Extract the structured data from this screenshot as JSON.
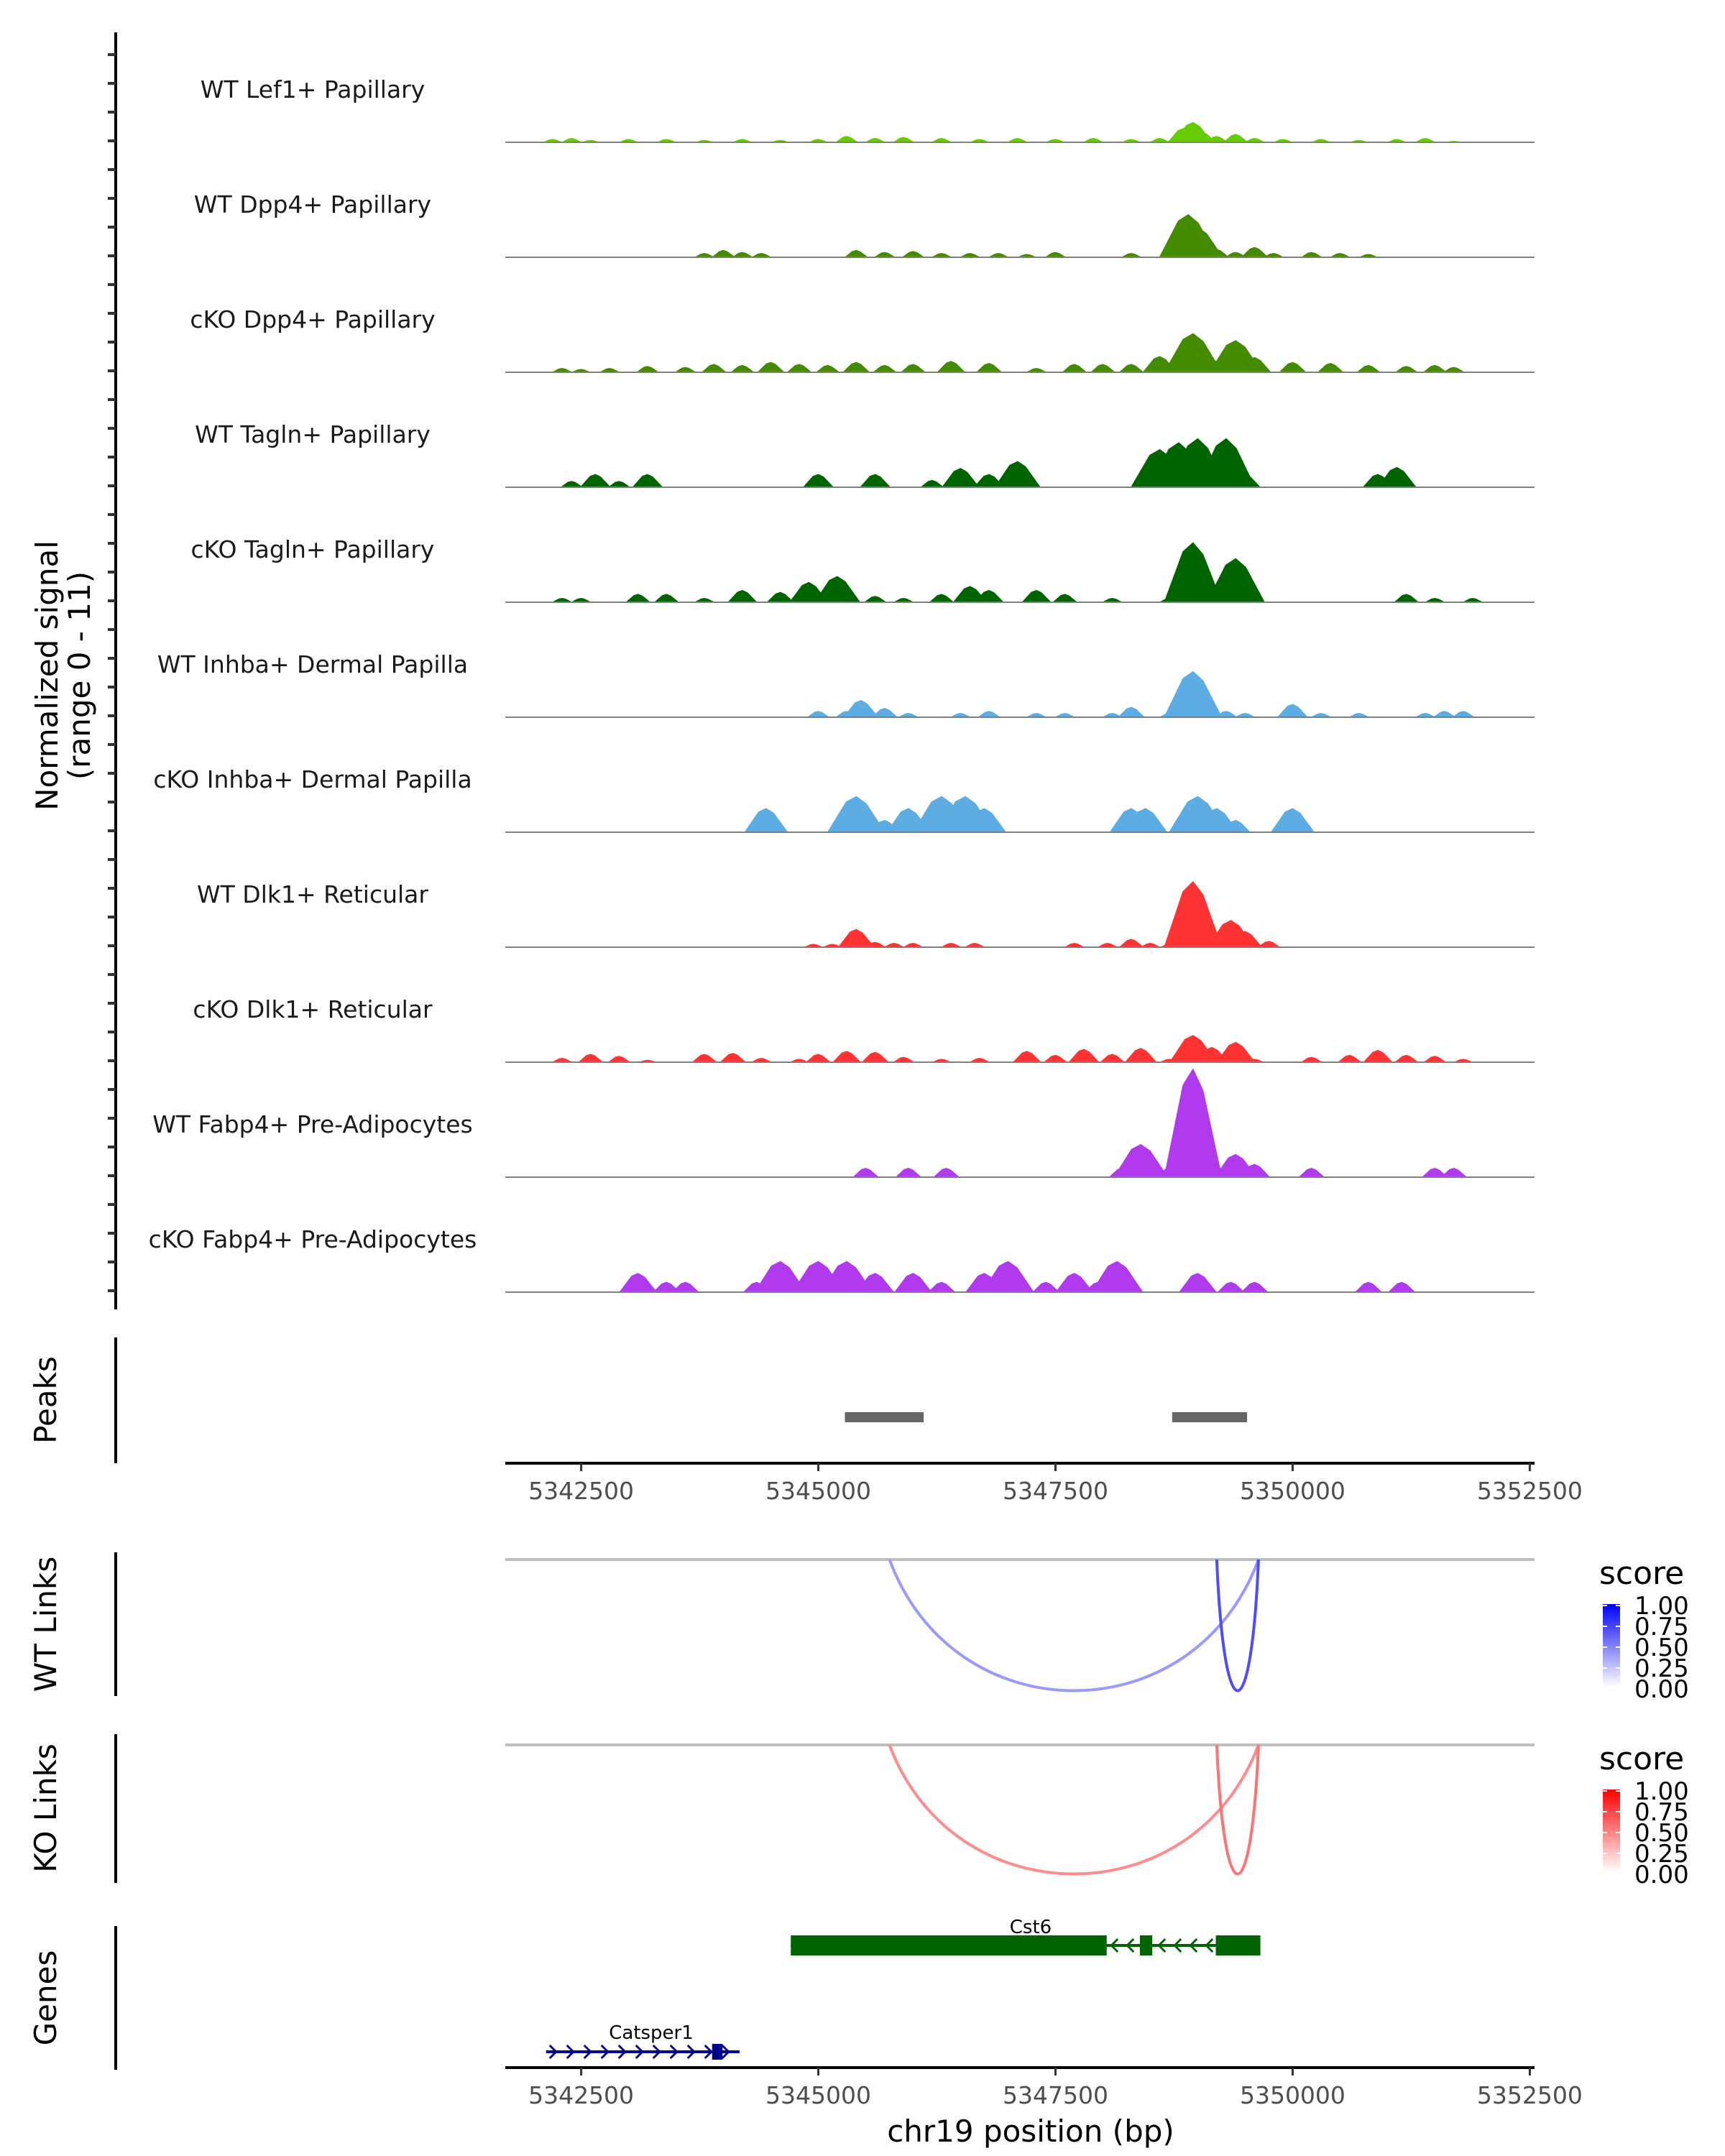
{
  "chart_data": {
    "type": "area",
    "title": "",
    "chromosome": "chr19",
    "xlabel": "chr19 position (bp)",
    "ylabel": "Normalized signal\n(range 0 - 11)",
    "ylabel_lines": [
      "Normalized signal",
      "(range 0 - 11)"
    ],
    "xlim": [
      5341700,
      5352550
    ],
    "ylim": [
      0,
      11
    ],
    "x_ticks": [
      5342500,
      5345000,
      5347500,
      5350000,
      5352500
    ],
    "x_tick_labels": [
      "5342500",
      "5345000",
      "5347500",
      "5350000",
      "5352500"
    ],
    "coverage_tracks": [
      {
        "name": "WT Lef1+ Papillary",
        "color": "#66cc00",
        "points": [
          [
            5342200,
            0.3
          ],
          [
            5342400,
            0.4
          ],
          [
            5342600,
            0.2
          ],
          [
            5343000,
            0.3
          ],
          [
            5343400,
            0.3
          ],
          [
            5343800,
            0.2
          ],
          [
            5344200,
            0.3
          ],
          [
            5344600,
            0.2
          ],
          [
            5345000,
            0.3
          ],
          [
            5345300,
            0.6
          ],
          [
            5345600,
            0.4
          ],
          [
            5345900,
            0.5
          ],
          [
            5346300,
            0.4
          ],
          [
            5346700,
            0.3
          ],
          [
            5347100,
            0.4
          ],
          [
            5347500,
            0.3
          ],
          [
            5347900,
            0.4
          ],
          [
            5348300,
            0.3
          ],
          [
            5348600,
            0.4
          ],
          [
            5348850,
            1.4
          ],
          [
            5348950,
            2.0
          ],
          [
            5349050,
            1.0
          ],
          [
            5349200,
            0.6
          ],
          [
            5349400,
            0.8
          ],
          [
            5349600,
            0.4
          ],
          [
            5349900,
            0.3
          ],
          [
            5350300,
            0.3
          ],
          [
            5350700,
            0.2
          ],
          [
            5351100,
            0.3
          ],
          [
            5351400,
            0.4
          ],
          [
            5351700,
            0.1
          ]
        ]
      },
      {
        "name": "WT Dpp4+ Papillary",
        "color": "#458b00",
        "points": [
          [
            5343800,
            0.4
          ],
          [
            5344000,
            0.7
          ],
          [
            5344200,
            0.5
          ],
          [
            5344400,
            0.4
          ],
          [
            5345400,
            0.7
          ],
          [
            5345700,
            0.5
          ],
          [
            5346000,
            0.6
          ],
          [
            5346300,
            0.4
          ],
          [
            5346600,
            0.4
          ],
          [
            5346900,
            0.4
          ],
          [
            5347200,
            0.3
          ],
          [
            5347500,
            0.5
          ],
          [
            5348300,
            0.4
          ],
          [
            5348700,
            0.4
          ],
          [
            5348900,
            4.3
          ],
          [
            5349000,
            3.0
          ],
          [
            5349200,
            0.8
          ],
          [
            5349400,
            0.5
          ],
          [
            5349600,
            1.0
          ],
          [
            5349800,
            0.4
          ],
          [
            5350200,
            0.5
          ],
          [
            5350500,
            0.4
          ],
          [
            5350800,
            0.3
          ]
        ]
      },
      {
        "name": "cKO Dpp4+ Papillary",
        "color": "#458b00",
        "points": [
          [
            5342300,
            0.4
          ],
          [
            5342500,
            0.3
          ],
          [
            5342800,
            0.4
          ],
          [
            5343200,
            0.6
          ],
          [
            5343600,
            0.5
          ],
          [
            5343900,
            0.8
          ],
          [
            5344200,
            0.7
          ],
          [
            5344500,
            1.0
          ],
          [
            5344800,
            0.8
          ],
          [
            5345100,
            0.7
          ],
          [
            5345400,
            1.0
          ],
          [
            5345700,
            0.7
          ],
          [
            5346000,
            0.8
          ],
          [
            5346400,
            1.1
          ],
          [
            5346800,
            0.9
          ],
          [
            5347300,
            0.4
          ],
          [
            5347700,
            0.8
          ],
          [
            5348000,
            0.8
          ],
          [
            5348300,
            0.8
          ],
          [
            5348600,
            1.6
          ],
          [
            5348950,
            3.9
          ],
          [
            5349150,
            1.3
          ],
          [
            5349400,
            3.2
          ],
          [
            5349600,
            1.5
          ],
          [
            5350000,
            1.0
          ],
          [
            5350400,
            0.9
          ],
          [
            5350800,
            0.7
          ],
          [
            5351200,
            0.6
          ],
          [
            5351500,
            0.7
          ],
          [
            5351700,
            0.5
          ]
        ]
      },
      {
        "name": "WT Tagln+ Papillary",
        "color": "#006400",
        "points": [
          [
            5342400,
            0.6
          ],
          [
            5342650,
            1.3
          ],
          [
            5342900,
            0.6
          ],
          [
            5343200,
            1.3
          ],
          [
            5345000,
            1.3
          ],
          [
            5345600,
            1.3
          ],
          [
            5346200,
            0.7
          ],
          [
            5346500,
            1.9
          ],
          [
            5346800,
            1.3
          ],
          [
            5347100,
            2.6
          ],
          [
            5348600,
            3.8
          ],
          [
            5348800,
            4.5
          ],
          [
            5349000,
            4.9
          ],
          [
            5349300,
            4.9
          ],
          [
            5349500,
            1.3
          ],
          [
            5350900,
            1.3
          ],
          [
            5351100,
            2.0
          ]
        ]
      },
      {
        "name": "cKO Tagln+ Papillary",
        "color": "#006400",
        "points": [
          [
            5342300,
            0.4
          ],
          [
            5342500,
            0.4
          ],
          [
            5343100,
            0.8
          ],
          [
            5343400,
            0.8
          ],
          [
            5343800,
            0.4
          ],
          [
            5344200,
            1.2
          ],
          [
            5344600,
            1.0
          ],
          [
            5344900,
            2.0
          ],
          [
            5345200,
            2.6
          ],
          [
            5345600,
            0.6
          ],
          [
            5345900,
            0.4
          ],
          [
            5346300,
            0.8
          ],
          [
            5346600,
            1.6
          ],
          [
            5346800,
            1.2
          ],
          [
            5347300,
            1.2
          ],
          [
            5347600,
            0.8
          ],
          [
            5348100,
            0.4
          ],
          [
            5348700,
            0.4
          ],
          [
            5348950,
            6.0
          ],
          [
            5349200,
            1.0
          ],
          [
            5349400,
            4.4
          ],
          [
            5349500,
            0.8
          ],
          [
            5351200,
            0.8
          ],
          [
            5351500,
            0.4
          ],
          [
            5351900,
            0.4
          ]
        ]
      },
      {
        "name": "WT Inhba+ Dermal Papilla",
        "color": "#5dade2",
        "points": [
          [
            5345000,
            0.6
          ],
          [
            5345300,
            0.6
          ],
          [
            5345450,
            1.7
          ],
          [
            5345700,
            0.9
          ],
          [
            5345950,
            0.4
          ],
          [
            5346500,
            0.4
          ],
          [
            5346800,
            0.6
          ],
          [
            5347300,
            0.4
          ],
          [
            5347600,
            0.4
          ],
          [
            5348100,
            0.4
          ],
          [
            5348300,
            1.0
          ],
          [
            5348700,
            0.4
          ],
          [
            5348950,
            4.6
          ],
          [
            5349100,
            1.3
          ],
          [
            5349300,
            0.6
          ],
          [
            5349500,
            0.4
          ],
          [
            5350000,
            1.3
          ],
          [
            5350300,
            0.4
          ],
          [
            5350700,
            0.4
          ],
          [
            5351400,
            0.4
          ],
          [
            5351600,
            0.6
          ],
          [
            5351800,
            0.6
          ]
        ]
      },
      {
        "name": "cKO Inhba+ Dermal Papilla",
        "color": "#5dade2",
        "points": [
          [
            5344450,
            2.4
          ],
          [
            5345250,
            1.2
          ],
          [
            5345400,
            3.6
          ],
          [
            5345700,
            1.2
          ],
          [
            5345950,
            2.4
          ],
          [
            5346100,
            1.2
          ],
          [
            5346300,
            3.6
          ],
          [
            5346550,
            3.6
          ],
          [
            5346750,
            2.4
          ],
          [
            5348300,
            2.4
          ],
          [
            5348450,
            2.4
          ],
          [
            5349000,
            3.6
          ],
          [
            5349200,
            2.4
          ],
          [
            5349400,
            1.2
          ],
          [
            5350000,
            2.4
          ]
        ]
      },
      {
        "name": "WT Dlk1+ Reticular",
        "color": "#ff3333",
        "points": [
          [
            5344950,
            0.3
          ],
          [
            5345150,
            0.3
          ],
          [
            5345400,
            1.8
          ],
          [
            5345600,
            0.5
          ],
          [
            5345800,
            0.4
          ],
          [
            5346000,
            0.4
          ],
          [
            5346400,
            0.4
          ],
          [
            5346650,
            0.4
          ],
          [
            5347700,
            0.4
          ],
          [
            5348050,
            0.4
          ],
          [
            5348300,
            0.8
          ],
          [
            5348500,
            0.4
          ],
          [
            5348700,
            0.3
          ],
          [
            5348950,
            6.6
          ],
          [
            5349100,
            0.8
          ],
          [
            5349350,
            2.7
          ],
          [
            5349500,
            1.6
          ],
          [
            5349750,
            0.6
          ]
        ]
      },
      {
        "name": "cKO Dlk1+ Reticular",
        "color": "#ff3333",
        "points": [
          [
            5342300,
            0.4
          ],
          [
            5342600,
            0.8
          ],
          [
            5342900,
            0.6
          ],
          [
            5343200,
            0.2
          ],
          [
            5343800,
            0.8
          ],
          [
            5344100,
            0.9
          ],
          [
            5344400,
            0.4
          ],
          [
            5344800,
            0.3
          ],
          [
            5345000,
            0.8
          ],
          [
            5345300,
            1.1
          ],
          [
            5345600,
            1.0
          ],
          [
            5345900,
            0.5
          ],
          [
            5346300,
            0.3
          ],
          [
            5346700,
            0.4
          ],
          [
            5347200,
            1.1
          ],
          [
            5347500,
            0.7
          ],
          [
            5347800,
            1.3
          ],
          [
            5348100,
            0.8
          ],
          [
            5348400,
            1.4
          ],
          [
            5348700,
            0.3
          ],
          [
            5348950,
            2.7
          ],
          [
            5349150,
            1.5
          ],
          [
            5349400,
            2.0
          ],
          [
            5349600,
            0.3
          ],
          [
            5350200,
            0.5
          ],
          [
            5350600,
            0.7
          ],
          [
            5350900,
            1.2
          ],
          [
            5351200,
            0.7
          ],
          [
            5351500,
            0.6
          ],
          [
            5351800,
            0.3
          ]
        ]
      },
      {
        "name": "WT Fabp4+ Pre-Adipocytes",
        "color": "#b23aee",
        "points": [
          [
            5345500,
            0.9
          ],
          [
            5345950,
            0.9
          ],
          [
            5346350,
            0.9
          ],
          [
            5348200,
            0.9
          ],
          [
            5348400,
            3.3
          ],
          [
            5348700,
            0.9
          ],
          [
            5348950,
            10.9
          ],
          [
            5349150,
            1.5
          ],
          [
            5349400,
            2.3
          ],
          [
            5349600,
            1.3
          ],
          [
            5350200,
            0.9
          ],
          [
            5351500,
            0.9
          ],
          [
            5351700,
            0.9
          ]
        ]
      },
      {
        "name": "cKO Fabp4+ Pre-Adipocytes",
        "color": "#b23aee",
        "points": [
          [
            5343100,
            1.9
          ],
          [
            5343400,
            1.0
          ],
          [
            5343600,
            1.0
          ],
          [
            5344350,
            1.0
          ],
          [
            5344600,
            3.1
          ],
          [
            5344800,
            1.0
          ],
          [
            5345000,
            3.1
          ],
          [
            5345300,
            3.1
          ],
          [
            5345600,
            1.9
          ],
          [
            5346000,
            1.9
          ],
          [
            5346300,
            1.0
          ],
          [
            5346750,
            1.9
          ],
          [
            5347000,
            3.1
          ],
          [
            5347400,
            1.0
          ],
          [
            5347700,
            1.9
          ],
          [
            5347950,
            1.0
          ],
          [
            5348150,
            3.1
          ],
          [
            5349000,
            1.9
          ],
          [
            5349350,
            1.0
          ],
          [
            5349600,
            1.0
          ],
          [
            5350800,
            1.0
          ],
          [
            5351150,
            1.0
          ]
        ]
      }
    ],
    "peaks": {
      "label": "Peaks",
      "color": "#666666",
      "regions": [
        [
          5345280,
          5346110
        ],
        [
          5348730,
          5349520
        ]
      ]
    },
    "links": [
      {
        "label": "WT Links",
        "legend_title": "score",
        "low_color": "#ffffff",
        "high_color": "#0000ff",
        "arcs": [
          {
            "start": 5345750,
            "end": 5349640,
            "score": 0.4
          },
          {
            "start": 5349200,
            "end": 5349640,
            "score": 0.7
          }
        ]
      },
      {
        "label": "KO Links",
        "legend_title": "score",
        "low_color": "#ffffff",
        "high_color": "#ff0000",
        "arcs": [
          {
            "start": 5345750,
            "end": 5349640,
            "score": 0.45
          },
          {
            "start": 5349200,
            "end": 5349640,
            "score": 0.55
          }
        ]
      }
    ],
    "legend_ticks": [
      "1.00",
      "0.75",
      "0.50",
      "0.25",
      "0.00"
    ],
    "genes": {
      "label": "Genes",
      "items": [
        {
          "name": "Cst6",
          "strand": "-",
          "color": "#006400",
          "start": 5344710,
          "end": 5349660,
          "exons": [
            [
              5344710,
              5348040
            ],
            [
              5348390,
              5348520
            ],
            [
              5349190,
              5349660
            ]
          ]
        },
        {
          "name": "Catsper1",
          "strand": "+",
          "color": "#00008b",
          "start": 5342130,
          "end": 5344170,
          "exons": [
            [
              5343880,
              5343990
            ]
          ]
        }
      ]
    }
  }
}
